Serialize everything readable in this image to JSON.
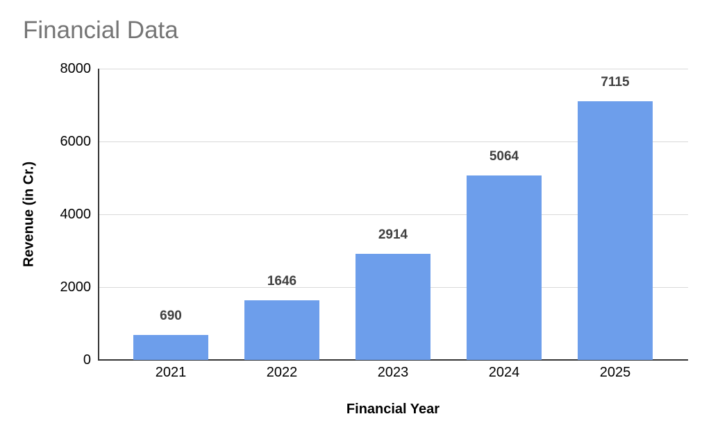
{
  "chart_data": {
    "type": "bar",
    "title": "Financial Data",
    "categories": [
      "2021",
      "2022",
      "2023",
      "2024",
      "2025"
    ],
    "values": [
      690,
      1646,
      2914,
      5064,
      7115
    ],
    "xlabel": "Financial Year",
    "ylabel": "Revenue (in Cr.)",
    "ylim": [
      0,
      8000
    ],
    "yticks": [
      0,
      2000,
      4000,
      6000,
      8000
    ],
    "grid": "horizontal",
    "legend_position": "none",
    "data_labels": "above-bars",
    "style": {
      "bar_color": "#6d9eeb",
      "title_color": "#757575",
      "data_label_color": "#404040",
      "axis_line_color": "#333333",
      "gridline_color": "#d9d9d9",
      "tick_label_color": "#000000",
      "axis_title_color": "#000000"
    }
  }
}
